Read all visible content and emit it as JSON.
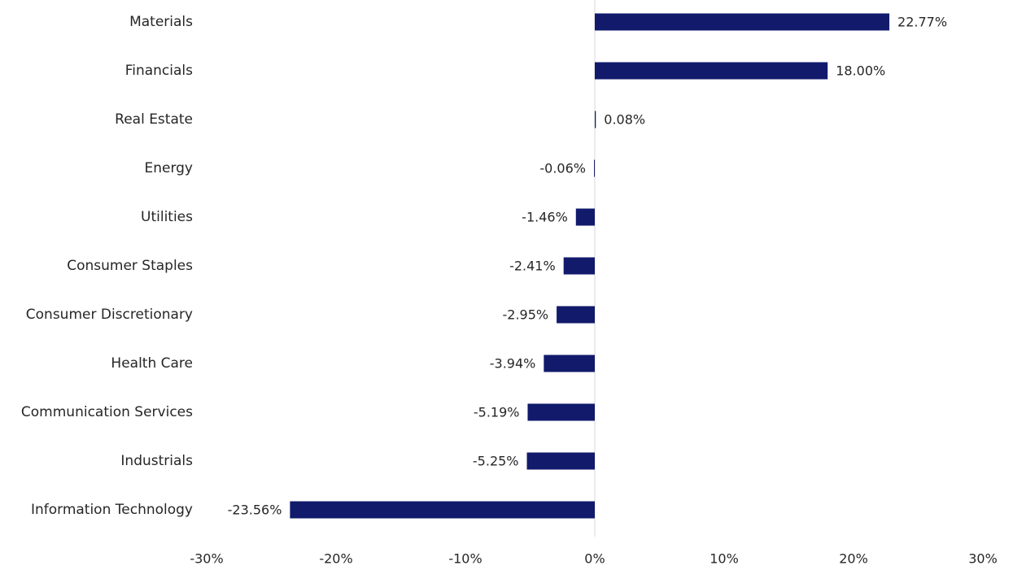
{
  "chart_data": {
    "type": "bar",
    "orientation": "horizontal",
    "categories": [
      "Materials",
      "Financials",
      "Real Estate",
      "Energy",
      "Utilities",
      "Consumer Staples",
      "Consumer Discretionary",
      "Health Care",
      "Communication Services",
      "Industrials",
      "Information Technology"
    ],
    "values": [
      22.77,
      18.0,
      0.08,
      -0.06,
      -1.46,
      -2.41,
      -2.95,
      -3.94,
      -5.19,
      -5.25,
      -23.56
    ],
    "value_labels": [
      "22.77%",
      "18.00%",
      "0.08%",
      "-0.06%",
      "-1.46%",
      "-2.41%",
      "-2.95%",
      "-3.94%",
      "-5.19%",
      "-5.25%",
      "-23.56%"
    ],
    "xlim": [
      -30,
      30
    ],
    "xticks": [
      -30,
      -20,
      -10,
      0,
      10,
      20,
      30
    ],
    "xtick_labels": [
      "-30%",
      "-20%",
      "-10%",
      "0%",
      "10%",
      "20%",
      "30%"
    ],
    "title": "",
    "xlabel": "",
    "ylabel": "",
    "grid": false,
    "legend": "none",
    "bar_color": "#111A6B",
    "zero_line_color": "#d9d9d9"
  }
}
